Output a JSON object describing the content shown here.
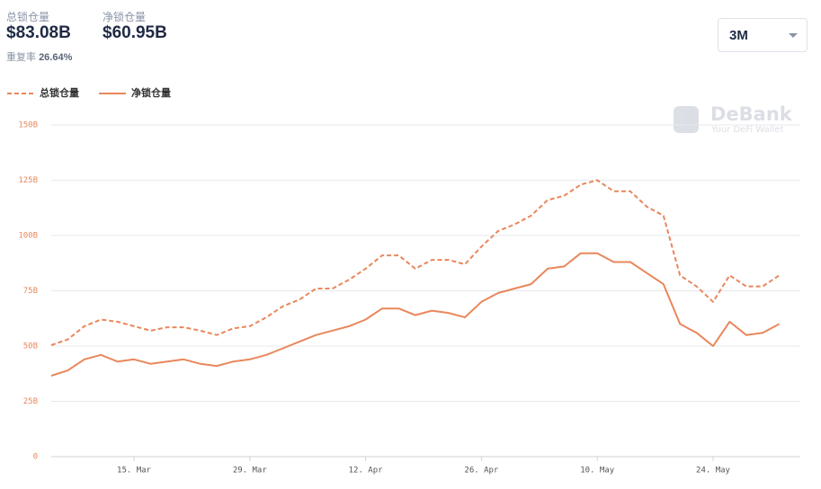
{
  "header": {
    "total_label": "总锁仓量",
    "total_value": "$83.08B",
    "net_label": "净锁仓量",
    "net_value": "$60.95B",
    "ratio_label": "重复率",
    "ratio_value": "26.64%",
    "range": "3M"
  },
  "watermark": {
    "brand": "DeBank",
    "tagline": "Your DeFi Wallet"
  },
  "chart_data": {
    "type": "line",
    "categories": [
      "5. Mar",
      "7. Mar",
      "9. Mar",
      "11. Mar",
      "13. Mar",
      "15. Mar",
      "17. Mar",
      "19. Mar",
      "21. Mar",
      "23. Mar",
      "25. Mar",
      "27. Mar",
      "29. Mar",
      "31. Mar",
      "2. Apr",
      "4. Apr",
      "6. Apr",
      "8. Apr",
      "10. Apr",
      "12. Apr",
      "14. Apr",
      "16. Apr",
      "18. Apr",
      "20. Apr",
      "22. Apr",
      "24. Apr",
      "26. Apr",
      "28. Apr",
      "30. Apr",
      "2. May",
      "4. May",
      "6. May",
      "8. May",
      "10. May",
      "12. May",
      "14. May",
      "16. May",
      "18. May",
      "20. May",
      "22. May",
      "24. May",
      "26. May",
      "28. May",
      "30. May",
      "1. Jun"
    ],
    "xticks": [
      "15. Mar",
      "29. Mar",
      "12. Apr",
      "26. Apr",
      "10. May",
      "24. May"
    ],
    "series": [
      {
        "name": "总锁仓量",
        "color": "#e9875b",
        "dashed": true,
        "values": [
          50.4,
          53,
          59,
          62,
          61,
          59,
          57,
          58.5,
          58.5,
          57,
          55,
          58,
          59,
          63,
          68,
          71,
          76,
          76,
          80,
          85,
          91,
          91,
          85,
          89,
          89,
          87,
          95,
          102,
          105,
          109,
          116,
          118,
          123,
          125,
          120,
          120,
          113,
          109,
          82,
          77,
          70,
          82,
          77,
          77,
          82
        ]
      },
      {
        "name": "净锁仓量",
        "color": "#e9875b",
        "dashed": false,
        "values": [
          36.6,
          39,
          44,
          46,
          43,
          44,
          42,
          43,
          44,
          42,
          41,
          43,
          44,
          46,
          49,
          52,
          55,
          57,
          59,
          62,
          67,
          67,
          64,
          66,
          65,
          63,
          70,
          74,
          76,
          78,
          85,
          86,
          92,
          92,
          88,
          88,
          83,
          78,
          60,
          56,
          50,
          61,
          55,
          56,
          60
        ]
      }
    ],
    "ylim": [
      0,
      150
    ],
    "yticks": [
      0,
      {
        "value": 25,
        "label": "25B"
      },
      {
        "value": 50,
        "label": "50B"
      },
      {
        "value": 75,
        "label": "75B"
      },
      {
        "value": 100,
        "label": "100B"
      },
      {
        "value": 125,
        "label": "125B"
      },
      {
        "value": 150,
        "label": "150B"
      }
    ],
    "grid": true
  }
}
